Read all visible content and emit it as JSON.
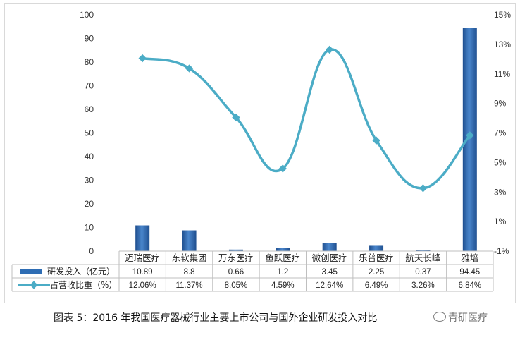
{
  "chart_data": {
    "type": "bar",
    "categories": [
      "迈瑞医疗",
      "东软集团",
      "万东医疗",
      "鱼跃医疗",
      "微创医疗",
      "乐普医疗",
      "航天长峰",
      "雅培"
    ],
    "series": [
      {
        "name": "研发投入（亿元）",
        "type": "bar",
        "axis": "left",
        "values": [
          10.89,
          8.8,
          0.66,
          1.2,
          3.45,
          2.25,
          0.37,
          94.45
        ],
        "labels": [
          "10.89",
          "8.8",
          "0.66",
          "1.2",
          "3.45",
          "2.25",
          "0.37",
          "94.45"
        ],
        "color": "#2e6db4"
      },
      {
        "name": "占营收比重（%）",
        "type": "line",
        "axis": "right",
        "smooth": true,
        "values": [
          12.06,
          11.37,
          8.05,
          4.59,
          12.64,
          6.49,
          3.26,
          6.84
        ],
        "labels": [
          "12.06%",
          "11.37%",
          "8.05%",
          "4.59%",
          "12.64%",
          "6.49%",
          "3.26%",
          "6.84%"
        ],
        "color": "#4bacc6"
      }
    ],
    "y_left": {
      "min": 0,
      "max": 100,
      "ticks": [
        "0",
        "10",
        "20",
        "30",
        "40",
        "50",
        "60",
        "70",
        "80",
        "90",
        "100"
      ]
    },
    "y_right": {
      "min": -1,
      "max": 15,
      "ticks": [
        "-1%",
        "1%",
        "3%",
        "5%",
        "7%",
        "9%",
        "11%",
        "13%",
        "15%"
      ]
    },
    "grid": false,
    "legend": "data-table-left",
    "title": ""
  },
  "caption": "图表 5：2016 年我国医疗器械行业主要上市公司与国外企业研发投入对比",
  "watermark": "青研医疗"
}
